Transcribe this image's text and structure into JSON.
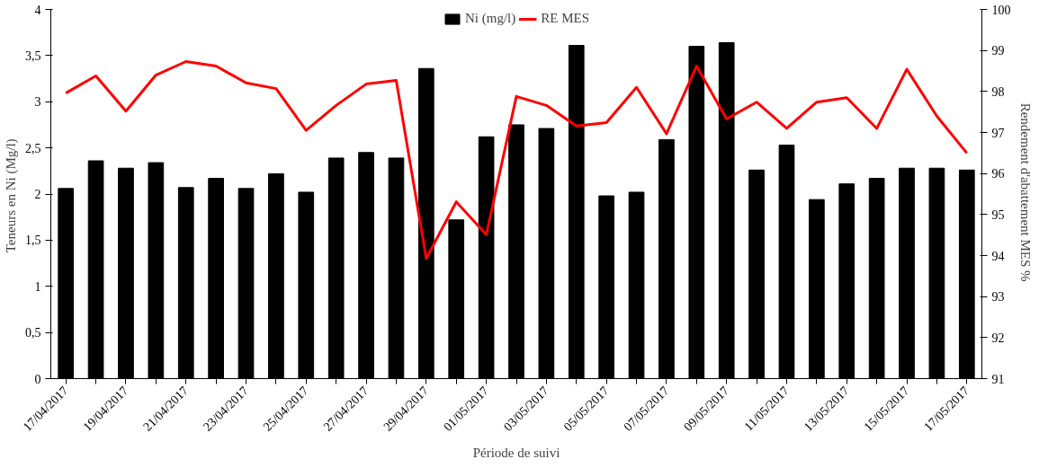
{
  "chart_data": {
    "type": "bar",
    "xlabel": "Période de suivi",
    "ylabel": "Teneurs en Ni  (Mg/l)",
    "y2label": "Rendement d'abattement  MES %",
    "categories": [
      "17/04/2017",
      null,
      "19/04/2017",
      null,
      "21/04/2017",
      null,
      "23/04/2017",
      null,
      "25/04/2017",
      null,
      "27/04/2017",
      null,
      "29/04/2017",
      null,
      "01/05/2017",
      null,
      "03/05/2017",
      null,
      "05/05/2017",
      null,
      "07/05/2017",
      null,
      "09/05/2017",
      null,
      "11/05/2017",
      null,
      "13/05/2017",
      null,
      "15/05/2017",
      null,
      "17/05/2017"
    ],
    "series": [
      {
        "name": "Ni (mg/l)",
        "color": "#000000",
        "values": [
          2.06,
          2.36,
          2.28,
          2.34,
          2.07,
          2.17,
          2.06,
          2.22,
          2.02,
          2.39,
          2.45,
          2.39,
          3.36,
          1.72,
          2.62,
          2.75,
          2.71,
          3.61,
          1.98,
          2.02,
          2.59,
          3.6,
          3.64,
          2.26,
          2.53,
          1.94,
          2.11,
          2.17,
          2.28,
          2.28,
          2.26
        ]
      },
      {
        "name": "RE MES",
        "type": "line",
        "axis": "y2",
        "color": "#ff0000",
        "values": [
          97.96,
          98.38,
          97.52,
          98.4,
          98.73,
          98.62,
          98.21,
          98.07,
          97.05,
          97.66,
          98.18,
          98.27,
          93.93,
          95.31,
          94.51,
          97.88,
          97.66,
          97.16,
          97.24,
          98.1,
          96.97,
          98.62,
          97.33,
          97.74,
          97.1,
          97.74,
          97.85,
          97.1,
          98.54,
          97.4,
          96.5
        ]
      }
    ],
    "ylim": [
      0,
      4
    ],
    "yticks": [
      0,
      {
        "value": 0.5,
        "label": "0,5"
      },
      1,
      {
        "value": 1.5,
        "label": "1,5"
      },
      2,
      {
        "value": 2.5,
        "label": "2,5"
      },
      3,
      {
        "value": 3.5,
        "label": "3,5"
      },
      4
    ],
    "y2lim": [
      91,
      100
    ],
    "y2ticks": [
      91,
      92,
      93,
      94,
      95,
      96,
      97,
      98,
      99,
      100
    ],
    "legend": "top",
    "grid": false
  }
}
